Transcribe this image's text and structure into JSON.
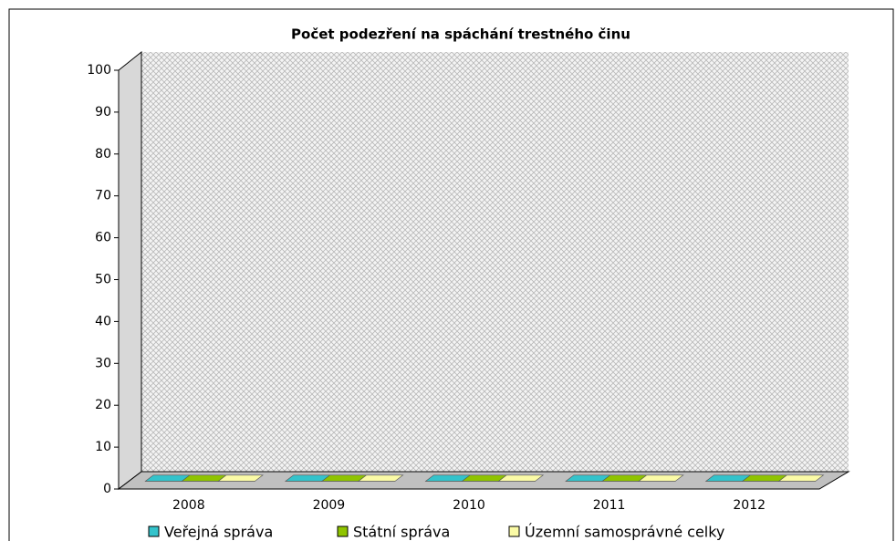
{
  "chart_data": {
    "type": "bar3d",
    "title": "Počet podezření na spáchání trestného činu",
    "categories": [
      "2008",
      "2009",
      "2010",
      "2011",
      "2012"
    ],
    "series": [
      {
        "name": "Veřejná správa",
        "color": "#33c3cb",
        "values": [
          0,
          0,
          0,
          0,
          0
        ]
      },
      {
        "name": "Státní správa",
        "color": "#8fc400",
        "values": [
          0,
          0,
          0,
          0,
          0
        ]
      },
      {
        "name": "Územní samosprávné celky",
        "color": "#fbfba6",
        "values": [
          0,
          0,
          0,
          0,
          0
        ]
      }
    ],
    "ylim": [
      0,
      100
    ],
    "yticks": [
      0,
      10,
      20,
      30,
      40,
      50,
      60,
      70,
      80,
      90,
      100
    ],
    "grid": false,
    "legend": "bottom"
  }
}
